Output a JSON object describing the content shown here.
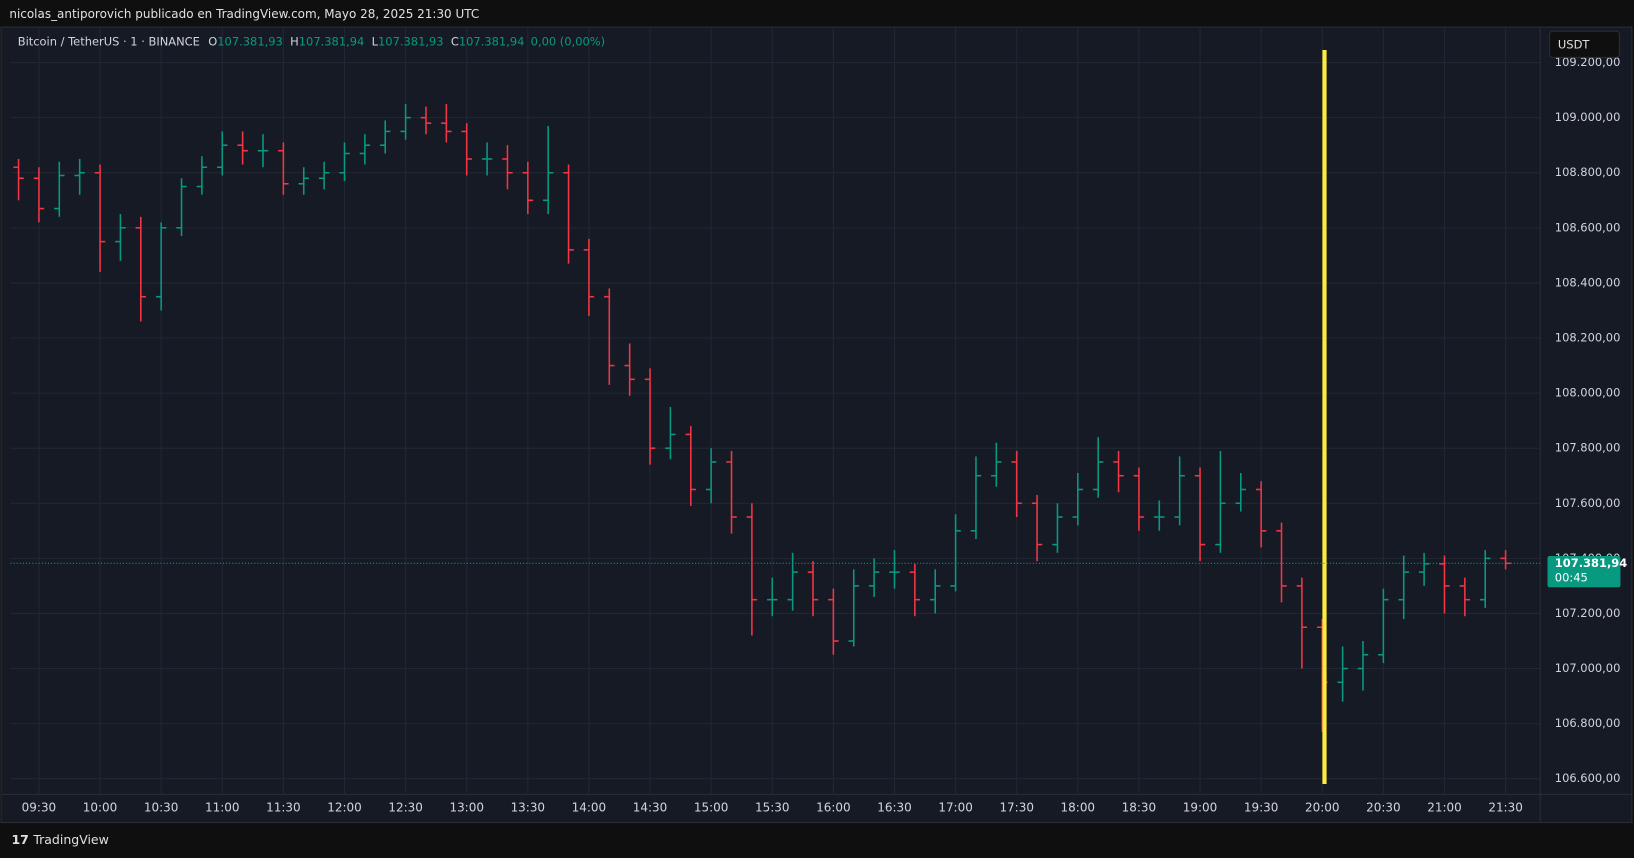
{
  "header": {
    "title": "nicolas_antiporovich publicado en TradingView.com, Mayo 28, 2025 21:30 UTC"
  },
  "chart_data": {
    "type": "ohlc",
    "symbol": "Bitcoin / TetherUS · 1 · BINANCE",
    "legend": [
      {
        "label": "O",
        "value": "107.381,93"
      },
      {
        "label": "H",
        "value": "107.381,94"
      },
      {
        "label": "L",
        "value": "107.381,93"
      },
      {
        "label": "C",
        "value": "107.381,94"
      }
    ],
    "change": "0,00 (0,00%)",
    "currency": "USDT",
    "up_color": "#089981",
    "down_color": "#f23645",
    "x": [
      "09:20",
      "09:30",
      "09:40",
      "09:50",
      "10:00",
      "10:10",
      "10:20",
      "10:30",
      "10:40",
      "10:50",
      "11:00",
      "11:10",
      "11:20",
      "11:30",
      "11:40",
      "11:50",
      "12:00",
      "12:10",
      "12:20",
      "12:30",
      "12:40",
      "12:50",
      "13:00",
      "13:10",
      "13:20",
      "13:30",
      "13:40",
      "13:50",
      "14:00",
      "14:10",
      "14:20",
      "14:30",
      "14:40",
      "14:50",
      "15:00",
      "15:10",
      "15:20",
      "15:30",
      "15:40",
      "15:50",
      "16:00",
      "16:10",
      "16:20",
      "16:30",
      "16:40",
      "16:50",
      "17:00",
      "17:10",
      "17:20",
      "17:30",
      "17:40",
      "17:50",
      "18:00",
      "18:10",
      "18:20",
      "18:30",
      "18:40",
      "18:50",
      "19:00",
      "19:10",
      "19:20",
      "19:30",
      "19:40",
      "19:50",
      "20:00",
      "20:10",
      "20:20",
      "20:30",
      "20:40",
      "20:50",
      "21:00",
      "21:10",
      "21:20",
      "21:30"
    ],
    "open": [
      108820,
      108780,
      108670,
      108790,
      108800,
      108550,
      108600,
      108350,
      108600,
      108750,
      108820,
      108900,
      108880,
      108880,
      108760,
      108780,
      108800,
      108870,
      108900,
      108950,
      109000,
      108980,
      108950,
      108850,
      108850,
      108800,
      108700,
      108800,
      108520,
      108350,
      108100,
      108050,
      107800,
      107850,
      107650,
      107750,
      107550,
      107250,
      107250,
      107350,
      107250,
      107100,
      107300,
      107350,
      107350,
      107250,
      107300,
      107500,
      107700,
      107750,
      107600,
      107450,
      107550,
      107650,
      107750,
      107700,
      107550,
      107550,
      107700,
      107450,
      107600,
      107650,
      107500,
      107300,
      107150,
      106950,
      107000,
      107050,
      107250,
      107350,
      107380,
      107300,
      107250,
      107400
    ],
    "high": [
      108850,
      108820,
      108840,
      108850,
      108830,
      108650,
      108640,
      108620,
      108780,
      108860,
      108950,
      108950,
      108940,
      108910,
      108820,
      108840,
      108910,
      108940,
      108990,
      109050,
      109040,
      109050,
      108980,
      108910,
      108900,
      108840,
      108970,
      108830,
      108560,
      108380,
      108180,
      108090,
      107950,
      107880,
      107800,
      107790,
      107600,
      107330,
      107420,
      107390,
      107290,
      107360,
      107400,
      107430,
      107380,
      107360,
      107560,
      107770,
      107820,
      107790,
      107630,
      107600,
      107710,
      107840,
      107790,
      107730,
      107610,
      107770,
      107730,
      107790,
      107710,
      107680,
      107530,
      107330,
      107180,
      107080,
      107100,
      107290,
      107410,
      107420,
      107410,
      107330,
      107430,
      107430
    ],
    "low": [
      108700,
      108620,
      108640,
      108720,
      108440,
      108480,
      108260,
      108300,
      108570,
      108720,
      108790,
      108830,
      108820,
      108720,
      108720,
      108740,
      108770,
      108830,
      108870,
      108920,
      108940,
      108910,
      108790,
      108790,
      108740,
      108650,
      108650,
      108470,
      108280,
      108030,
      107990,
      107740,
      107760,
      107590,
      107600,
      107490,
      107120,
      107190,
      107210,
      107190,
      107050,
      107080,
      107260,
      107290,
      107190,
      107200,
      107280,
      107470,
      107660,
      107550,
      107390,
      107420,
      107520,
      107620,
      107640,
      107500,
      107500,
      107520,
      107390,
      107420,
      107570,
      107440,
      107240,
      107000,
      106770,
      106880,
      106920,
      107020,
      107180,
      107300,
      107200,
      107190,
      107220,
      107360
    ],
    "close": [
      108780,
      108670,
      108790,
      108800,
      108550,
      108600,
      108350,
      108600,
      108750,
      108820,
      108900,
      108880,
      108880,
      108760,
      108780,
      108800,
      108870,
      108900,
      108950,
      109000,
      108980,
      108950,
      108850,
      108850,
      108800,
      108700,
      108800,
      108520,
      108350,
      108100,
      108050,
      107800,
      107850,
      107650,
      107750,
      107550,
      107250,
      107250,
      107350,
      107250,
      107100,
      107300,
      107350,
      107350,
      107250,
      107300,
      107500,
      107700,
      107750,
      107600,
      107450,
      107550,
      107650,
      107750,
      107700,
      107550,
      107550,
      107700,
      107450,
      107600,
      107650,
      107500,
      107300,
      107150,
      106950,
      107000,
      107050,
      107250,
      107350,
      107380,
      107300,
      107250,
      107400,
      107382
    ],
    "xlim": [
      "09:16",
      "21:47"
    ],
    "xticks": [
      "09:30",
      "10:00",
      "10:30",
      "11:00",
      "11:30",
      "12:00",
      "12:30",
      "13:00",
      "13:30",
      "14:00",
      "14:30",
      "15:00",
      "15:30",
      "16:00",
      "16:30",
      "17:00",
      "17:30",
      "18:00",
      "18:30",
      "19:00",
      "19:30",
      "20:00",
      "20:30",
      "21:00",
      "21:30"
    ],
    "ylim": [
      106543,
      109325
    ],
    "yticks": [
      {
        "value": 106600,
        "label": "106.600,00"
      },
      {
        "value": 106800,
        "label": "106.800,00"
      },
      {
        "value": 107000,
        "label": "107.000,00"
      },
      {
        "value": 107200,
        "label": "107.200,00"
      },
      {
        "value": 107400,
        "label": "107.400,00"
      },
      {
        "value": 107600,
        "label": "107.600,00"
      },
      {
        "value": 107800,
        "label": "107.800,00"
      },
      {
        "value": 108000,
        "label": "108.000,00"
      },
      {
        "value": 108200,
        "label": "108.200,00"
      },
      {
        "value": 108400,
        "label": "108.400,00"
      },
      {
        "value": 108600,
        "label": "108.600,00"
      },
      {
        "value": 108800,
        "label": "108.800,00"
      },
      {
        "value": 109000,
        "label": "109.000,00"
      },
      {
        "value": 109200,
        "label": "109.200,00"
      }
    ],
    "grid": true,
    "last_price": {
      "value": 107381.94,
      "label": "107.381,94",
      "countdown": "00:45"
    },
    "branding": "TradingView"
  }
}
